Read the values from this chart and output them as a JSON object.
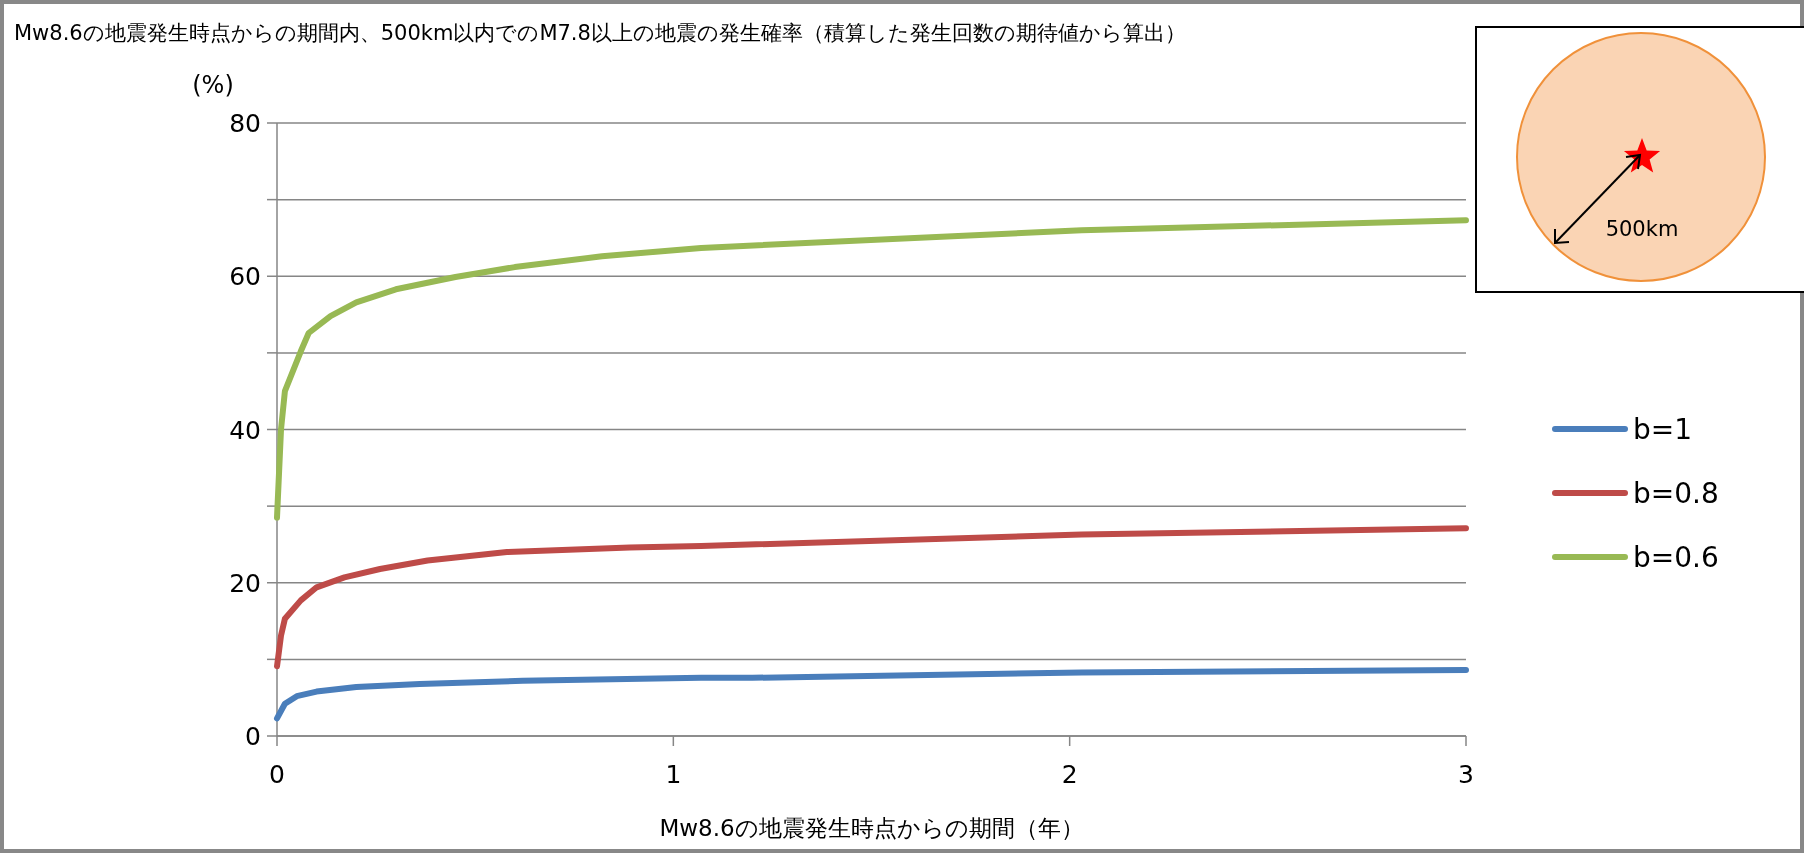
{
  "chart_data": {
    "type": "line",
    "title": "Mw8.6の地震発生時点からの期間内、500km以内でのM7.8以上の地震の発生確率（積算した発生回数の期待値から算出）",
    "xlabel": "Mw8.6の地震発生時点からの期間（年）",
    "ylabel": "(%)",
    "annotations": [
      "500km"
    ],
    "xlim": [
      0,
      3
    ],
    "xticks": [
      0,
      1,
      2,
      3
    ],
    "ylim": [
      0,
      80
    ],
    "yticks": [
      0,
      {
        "value": 10,
        "label": null
      },
      20,
      {
        "value": 30,
        "label": null
      },
      40,
      {
        "value": 50,
        "label": null
      },
      60,
      {
        "value": 70,
        "label": null
      },
      80
    ],
    "grid": "y",
    "legend": "right",
    "line_style": "solid",
    "marker": "none",
    "series": [
      {
        "name": "b=1",
        "color": "#4a7ebb",
        "x": [
          0,
          0.02,
          0.05,
          0.1,
          0.2,
          0.36,
          0.62,
          1.07,
          1.2,
          2.03,
          3
        ],
        "values": [
          2.3,
          4.2,
          5.2,
          5.8,
          6.4,
          6.8,
          7.2,
          7.6,
          7.6,
          8.3,
          8.6
        ]
      },
      {
        "name": "b=0.8",
        "color": "#be4b48",
        "x": [
          0,
          0.01,
          0.02,
          0.06,
          0.1,
          0.17,
          0.26,
          0.38,
          0.58,
          0.89,
          1.07,
          2.03,
          3
        ],
        "values": [
          9.1,
          13.1,
          15.3,
          17.7,
          19.4,
          20.7,
          21.8,
          22.9,
          24,
          24.6,
          24.8,
          26.3,
          27.1
        ]
      },
      {
        "name": "b=0.6",
        "color": "#98b954",
        "x": [
          0,
          0.01,
          0.02,
          0.06,
          0.08,
          0.135,
          0.2,
          0.3,
          0.45,
          0.6,
          0.82,
          1.07,
          2.03,
          3
        ],
        "values": [
          28.5,
          40,
          45,
          50.2,
          52.6,
          54.8,
          56.6,
          58.3,
          59.9,
          61.2,
          62.6,
          63.7,
          66,
          67.3
        ]
      }
    ]
  }
}
